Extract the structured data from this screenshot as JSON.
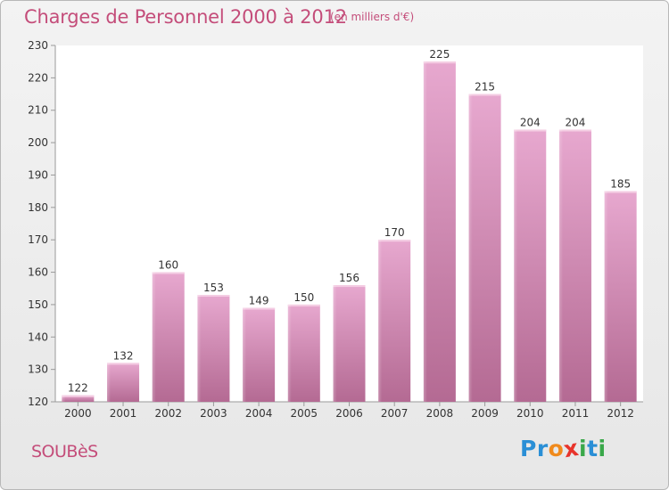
{
  "title": "Charges de Personnel 2000 à 2012",
  "subtitle": "(en milliers d'€)",
  "commune": "SOUBèS",
  "logo": {
    "letters": [
      "P",
      "r",
      "o",
      "x",
      "i",
      "t",
      "i"
    ],
    "colors": [
      "#2a8fd6",
      "#2a8fd6",
      "#f08a1c",
      "#e8342c",
      "#3aa84a",
      "#2a8fd6",
      "#3aa84a"
    ]
  },
  "chart_data": {
    "type": "bar",
    "categories": [
      "2000",
      "2001",
      "2002",
      "2003",
      "2004",
      "2005",
      "2006",
      "2007",
      "2008",
      "2009",
      "2010",
      "2011",
      "2012"
    ],
    "values": [
      122,
      132,
      160,
      153,
      149,
      150,
      156,
      170,
      225,
      215,
      204,
      204,
      185
    ],
    "ylim": [
      120,
      230
    ],
    "yticks": [
      120,
      130,
      140,
      150,
      160,
      170,
      180,
      190,
      200,
      210,
      220,
      230
    ],
    "grid": false,
    "bar_color": "#c97aa6"
  }
}
